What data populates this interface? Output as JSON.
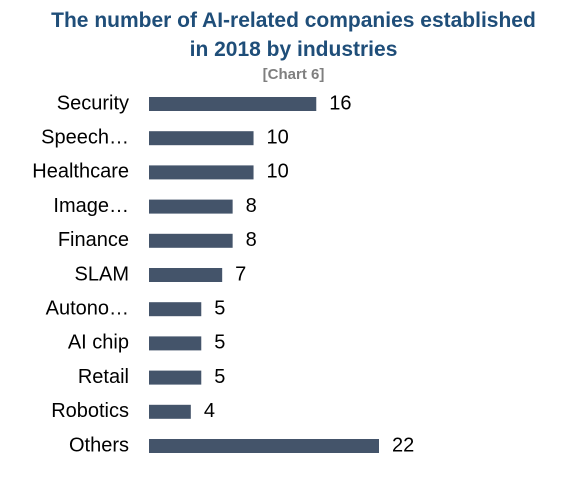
{
  "chart_data": {
    "type": "barh",
    "title": "The number of AI-related companies established in 2018 by industries",
    "subtitle": "[Chart 6]",
    "categories": [
      "Security",
      "Speech…",
      "Healthcare",
      "Image…",
      "Finance",
      "SLAM",
      "Autono…",
      "AI chip",
      "Retail",
      "Robotics",
      "Others"
    ],
    "values": [
      16,
      10,
      10,
      8,
      8,
      7,
      5,
      5,
      5,
      4,
      22
    ],
    "color": "#44546a"
  }
}
